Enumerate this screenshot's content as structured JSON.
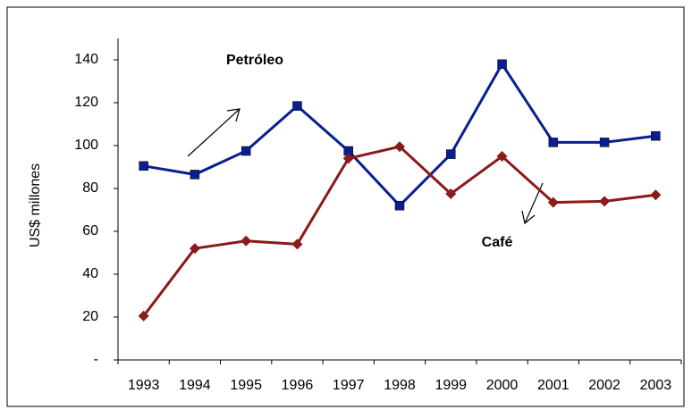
{
  "chart_data": {
    "type": "line",
    "y_label": "US$ millones",
    "annotations": [
      "Petróleo",
      "Café"
    ],
    "categories": [
      "1993",
      "1994",
      "1995",
      "1996",
      "1997",
      "1998",
      "1999",
      "2000",
      "2001",
      "2002",
      "2003"
    ],
    "series": [
      {
        "name": "Petróleo",
        "color": "#0a1f8f",
        "marker": "square",
        "values": [
          90.5,
          86.5,
          97.5,
          118.5,
          97.5,
          72,
          96,
          138,
          101.5,
          101.5,
          104.5
        ]
      },
      {
        "name": "Café",
        "color": "#8b1a1a",
        "marker": "diamond",
        "values": [
          20.5,
          52,
          55.5,
          54,
          94,
          99.5,
          77.5,
          95,
          73.5,
          74,
          77
        ]
      }
    ],
    "ylim": [
      0,
      150
    ],
    "yticks": [
      {
        "value": 0,
        "label": "-"
      },
      20,
      40,
      60,
      80,
      100,
      120,
      140
    ],
    "grid": false
  }
}
